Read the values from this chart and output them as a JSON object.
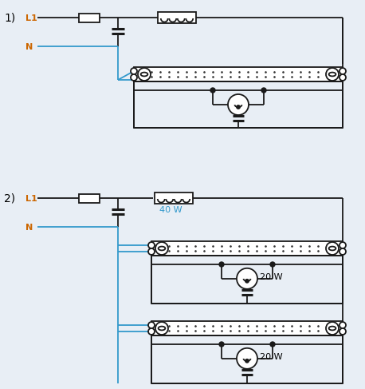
{
  "bg_color": "#e8eef5",
  "line_color": "#1a1a1a",
  "blue_color": "#3399cc",
  "orange_color": "#cc6600",
  "black_color": "#000000",
  "title1": "1)",
  "title2": "2)",
  "label_L1": "L1",
  "label_N": "N",
  "label_40W": "40 W",
  "label_20W": "20 W",
  "figsize": [
    4.58,
    4.87
  ],
  "dpi": 100
}
